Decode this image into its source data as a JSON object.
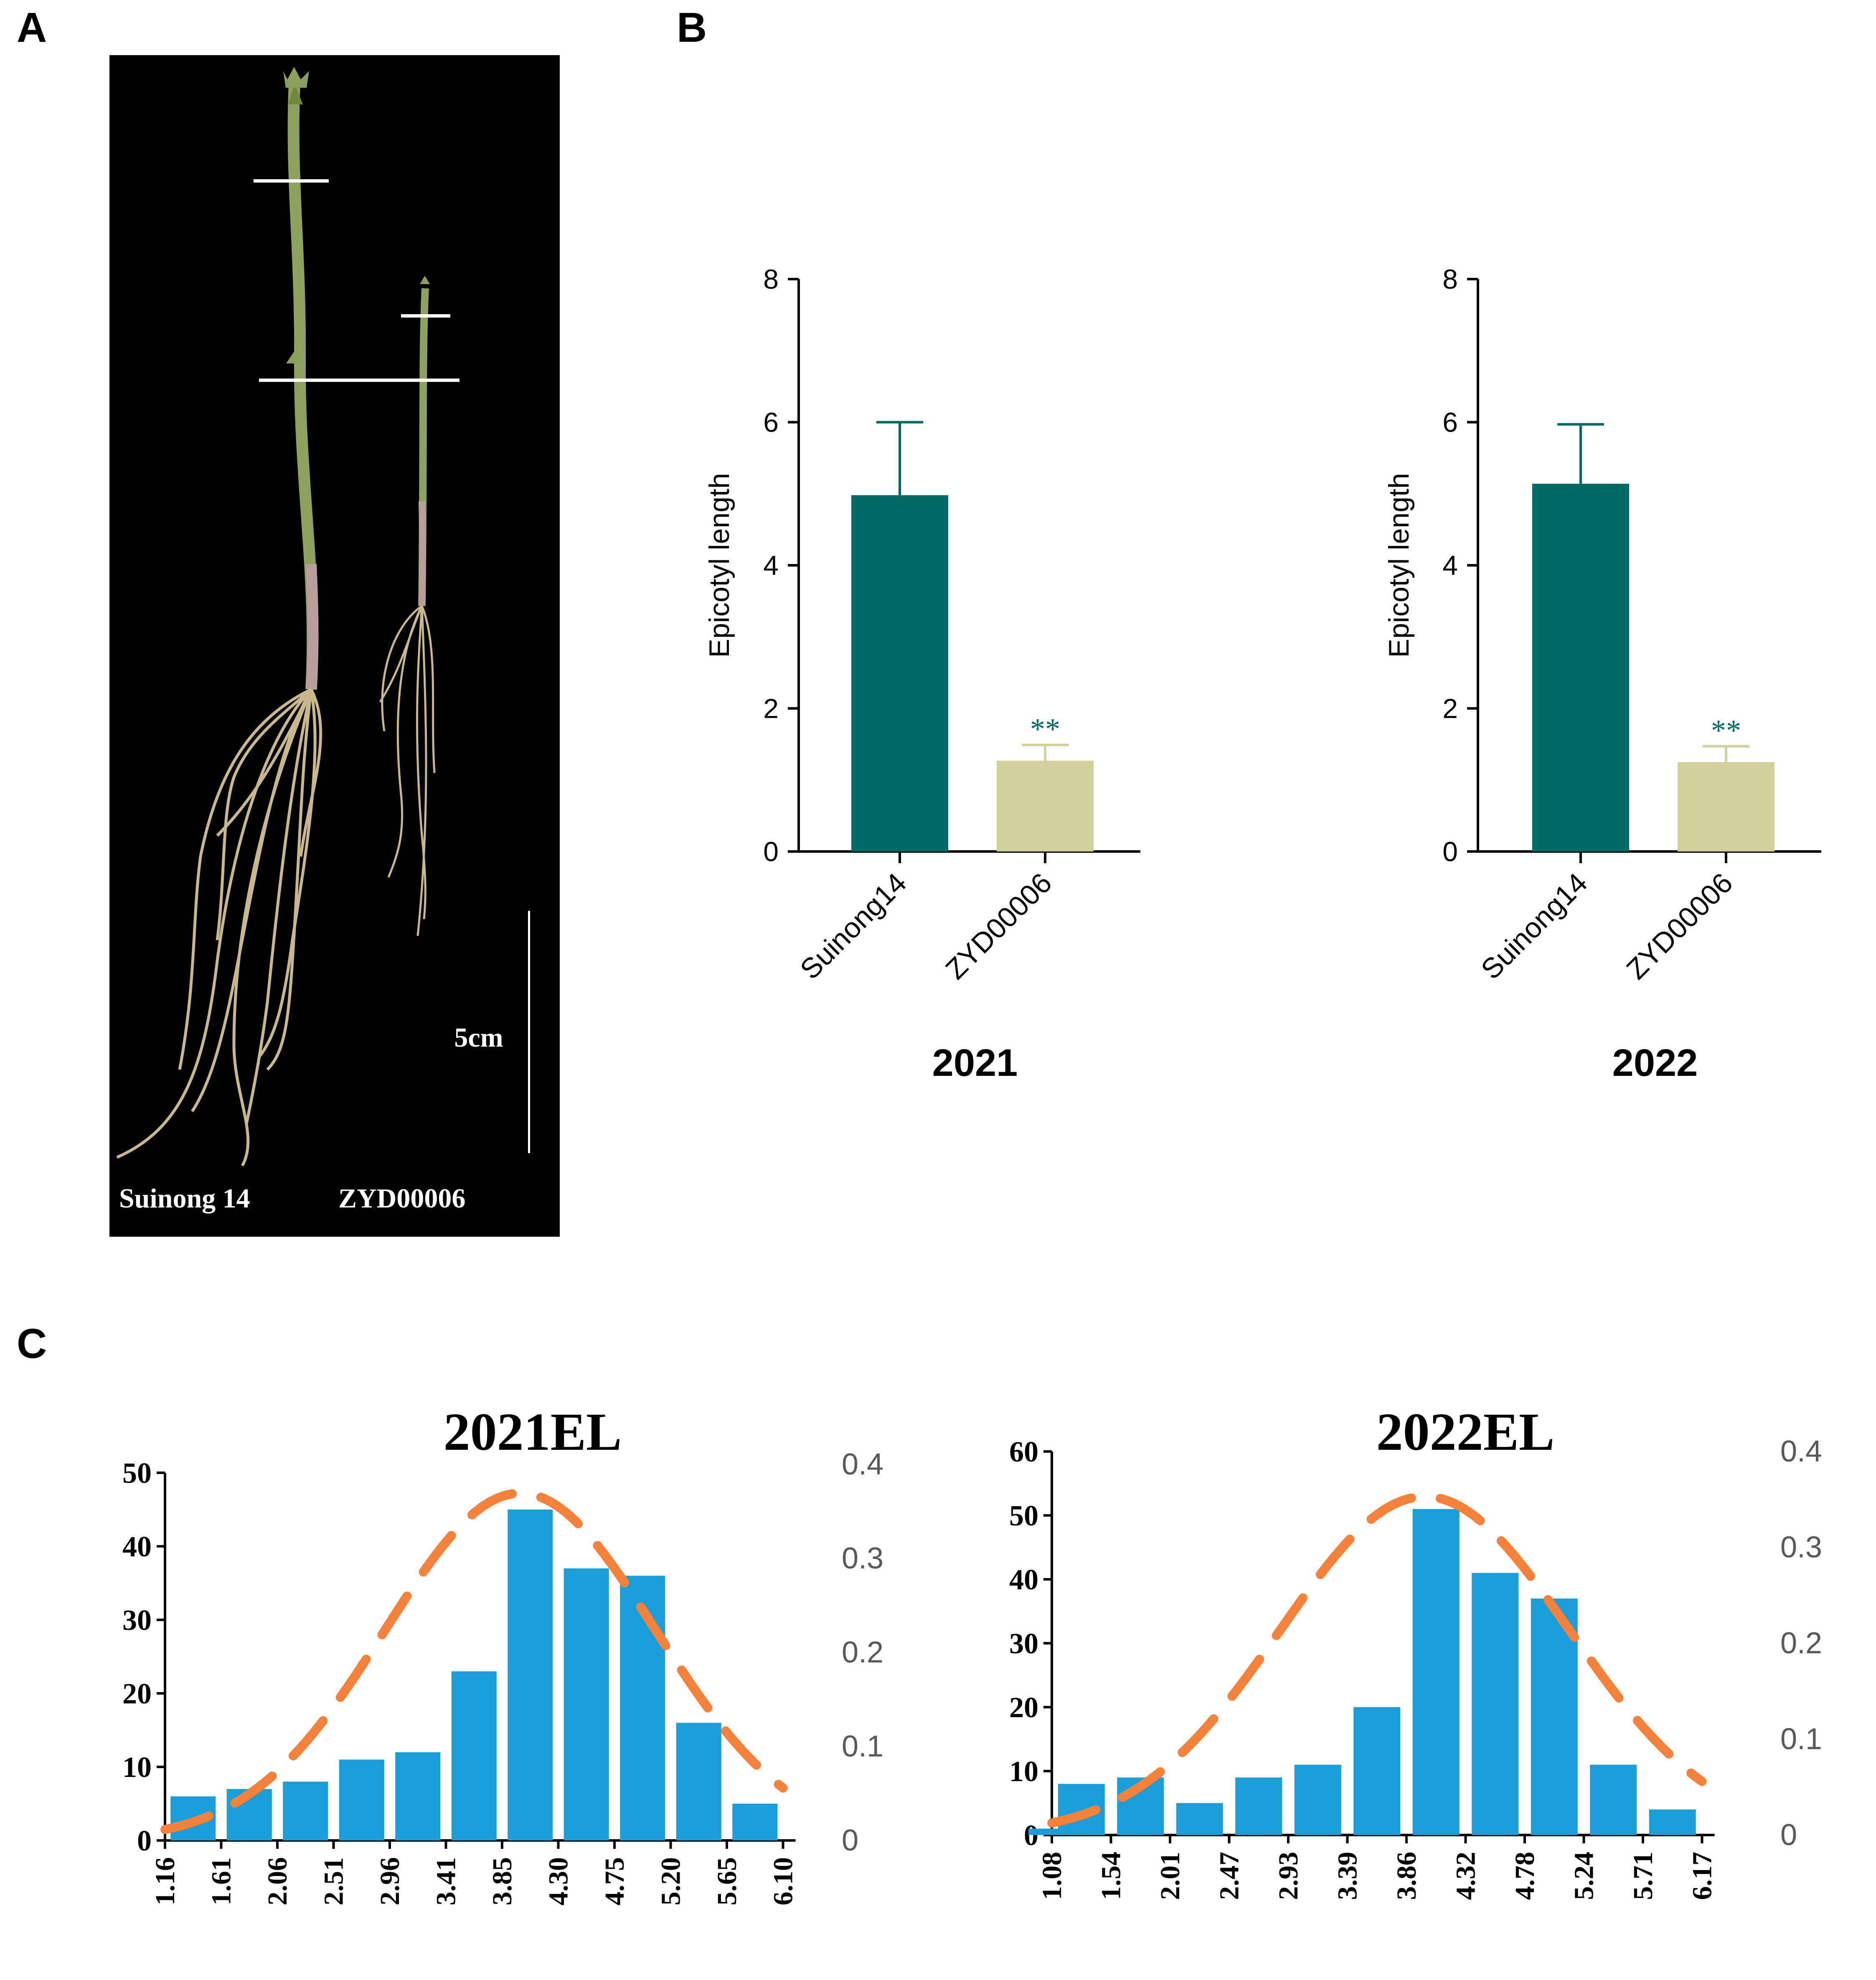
{
  "panels": {
    "a": "A",
    "b": "B",
    "c": "C"
  },
  "photo": {
    "scale_label": "5cm",
    "left_label": "Suinong 14",
    "right_label": "ZYD00006"
  },
  "colors": {
    "dark_bar": "#016a67",
    "light_bar": "#d2d19b",
    "hist_bar": "#1b9dd9",
    "curve": "#f5813a",
    "photo_bg": "#000000"
  },
  "chart_data": [
    {
      "type": "bar",
      "year_label": "2021",
      "ylabel": "Epicotyl length",
      "categories": [
        "Suinong14",
        "ZYD00006"
      ],
      "values": [
        4.98,
        1.27
      ],
      "errors": [
        1.02,
        0.22
      ],
      "significance": [
        "",
        "**"
      ],
      "ylim": [
        0,
        8
      ],
      "yticks": [
        "0",
        "2",
        "4",
        "6",
        "8"
      ]
    },
    {
      "type": "bar",
      "year_label": "2022",
      "ylabel": "Epicotyl length",
      "categories": [
        "Suinong14",
        "ZYD00006"
      ],
      "values": [
        5.14,
        1.25
      ],
      "errors": [
        0.83,
        0.22
      ],
      "significance": [
        "",
        "**"
      ],
      "ylim": [
        0,
        8
      ],
      "yticks": [
        "0",
        "2",
        "4",
        "6",
        "8"
      ]
    },
    {
      "type": "bar",
      "title": "2021EL",
      "categories": [
        "1.16",
        "1.61",
        "2.06",
        "2.51",
        "2.96",
        "3.41",
        "3.85",
        "4.30",
        "4.75",
        "5.20",
        "5.65",
        "6.10"
      ],
      "values": [
        0,
        6,
        7,
        8,
        11,
        12,
        23,
        45,
        37,
        36,
        16,
        5
      ],
      "ylim": [
        0,
        50
      ],
      "yticks": [
        "0",
        "10",
        "20",
        "30",
        "40",
        "50"
      ],
      "y2lim": [
        0,
        0.4
      ],
      "y2ticks": [
        "0",
        "0.1",
        "0.2",
        "0.3",
        "0.4"
      ],
      "curve": {
        "mean": 4.0,
        "sd": 1.08,
        "x_range": [
          1.16,
          6.1
        ]
      }
    },
    {
      "type": "bar",
      "title": "2022EL",
      "categories": [
        "1.08",
        "1.54",
        "2.01",
        "2.47",
        "2.93",
        "3.39",
        "3.86",
        "4.32",
        "4.78",
        "5.24",
        "5.71",
        "6.17"
      ],
      "values": [
        1,
        8,
        9,
        5,
        9,
        11,
        20,
        51,
        41,
        37,
        11,
        4
      ],
      "ylim": [
        0,
        60
      ],
      "yticks": [
        "0",
        "10",
        "20",
        "30",
        "40",
        "50",
        "60"
      ],
      "y2lim": [
        0,
        0.4
      ],
      "y2ticks": [
        "0",
        "0.1",
        "0.2",
        "0.3",
        "0.4"
      ],
      "curve": {
        "mean": 4.0,
        "sd": 1.13,
        "x_range": [
          1.08,
          6.17
        ]
      }
    }
  ]
}
